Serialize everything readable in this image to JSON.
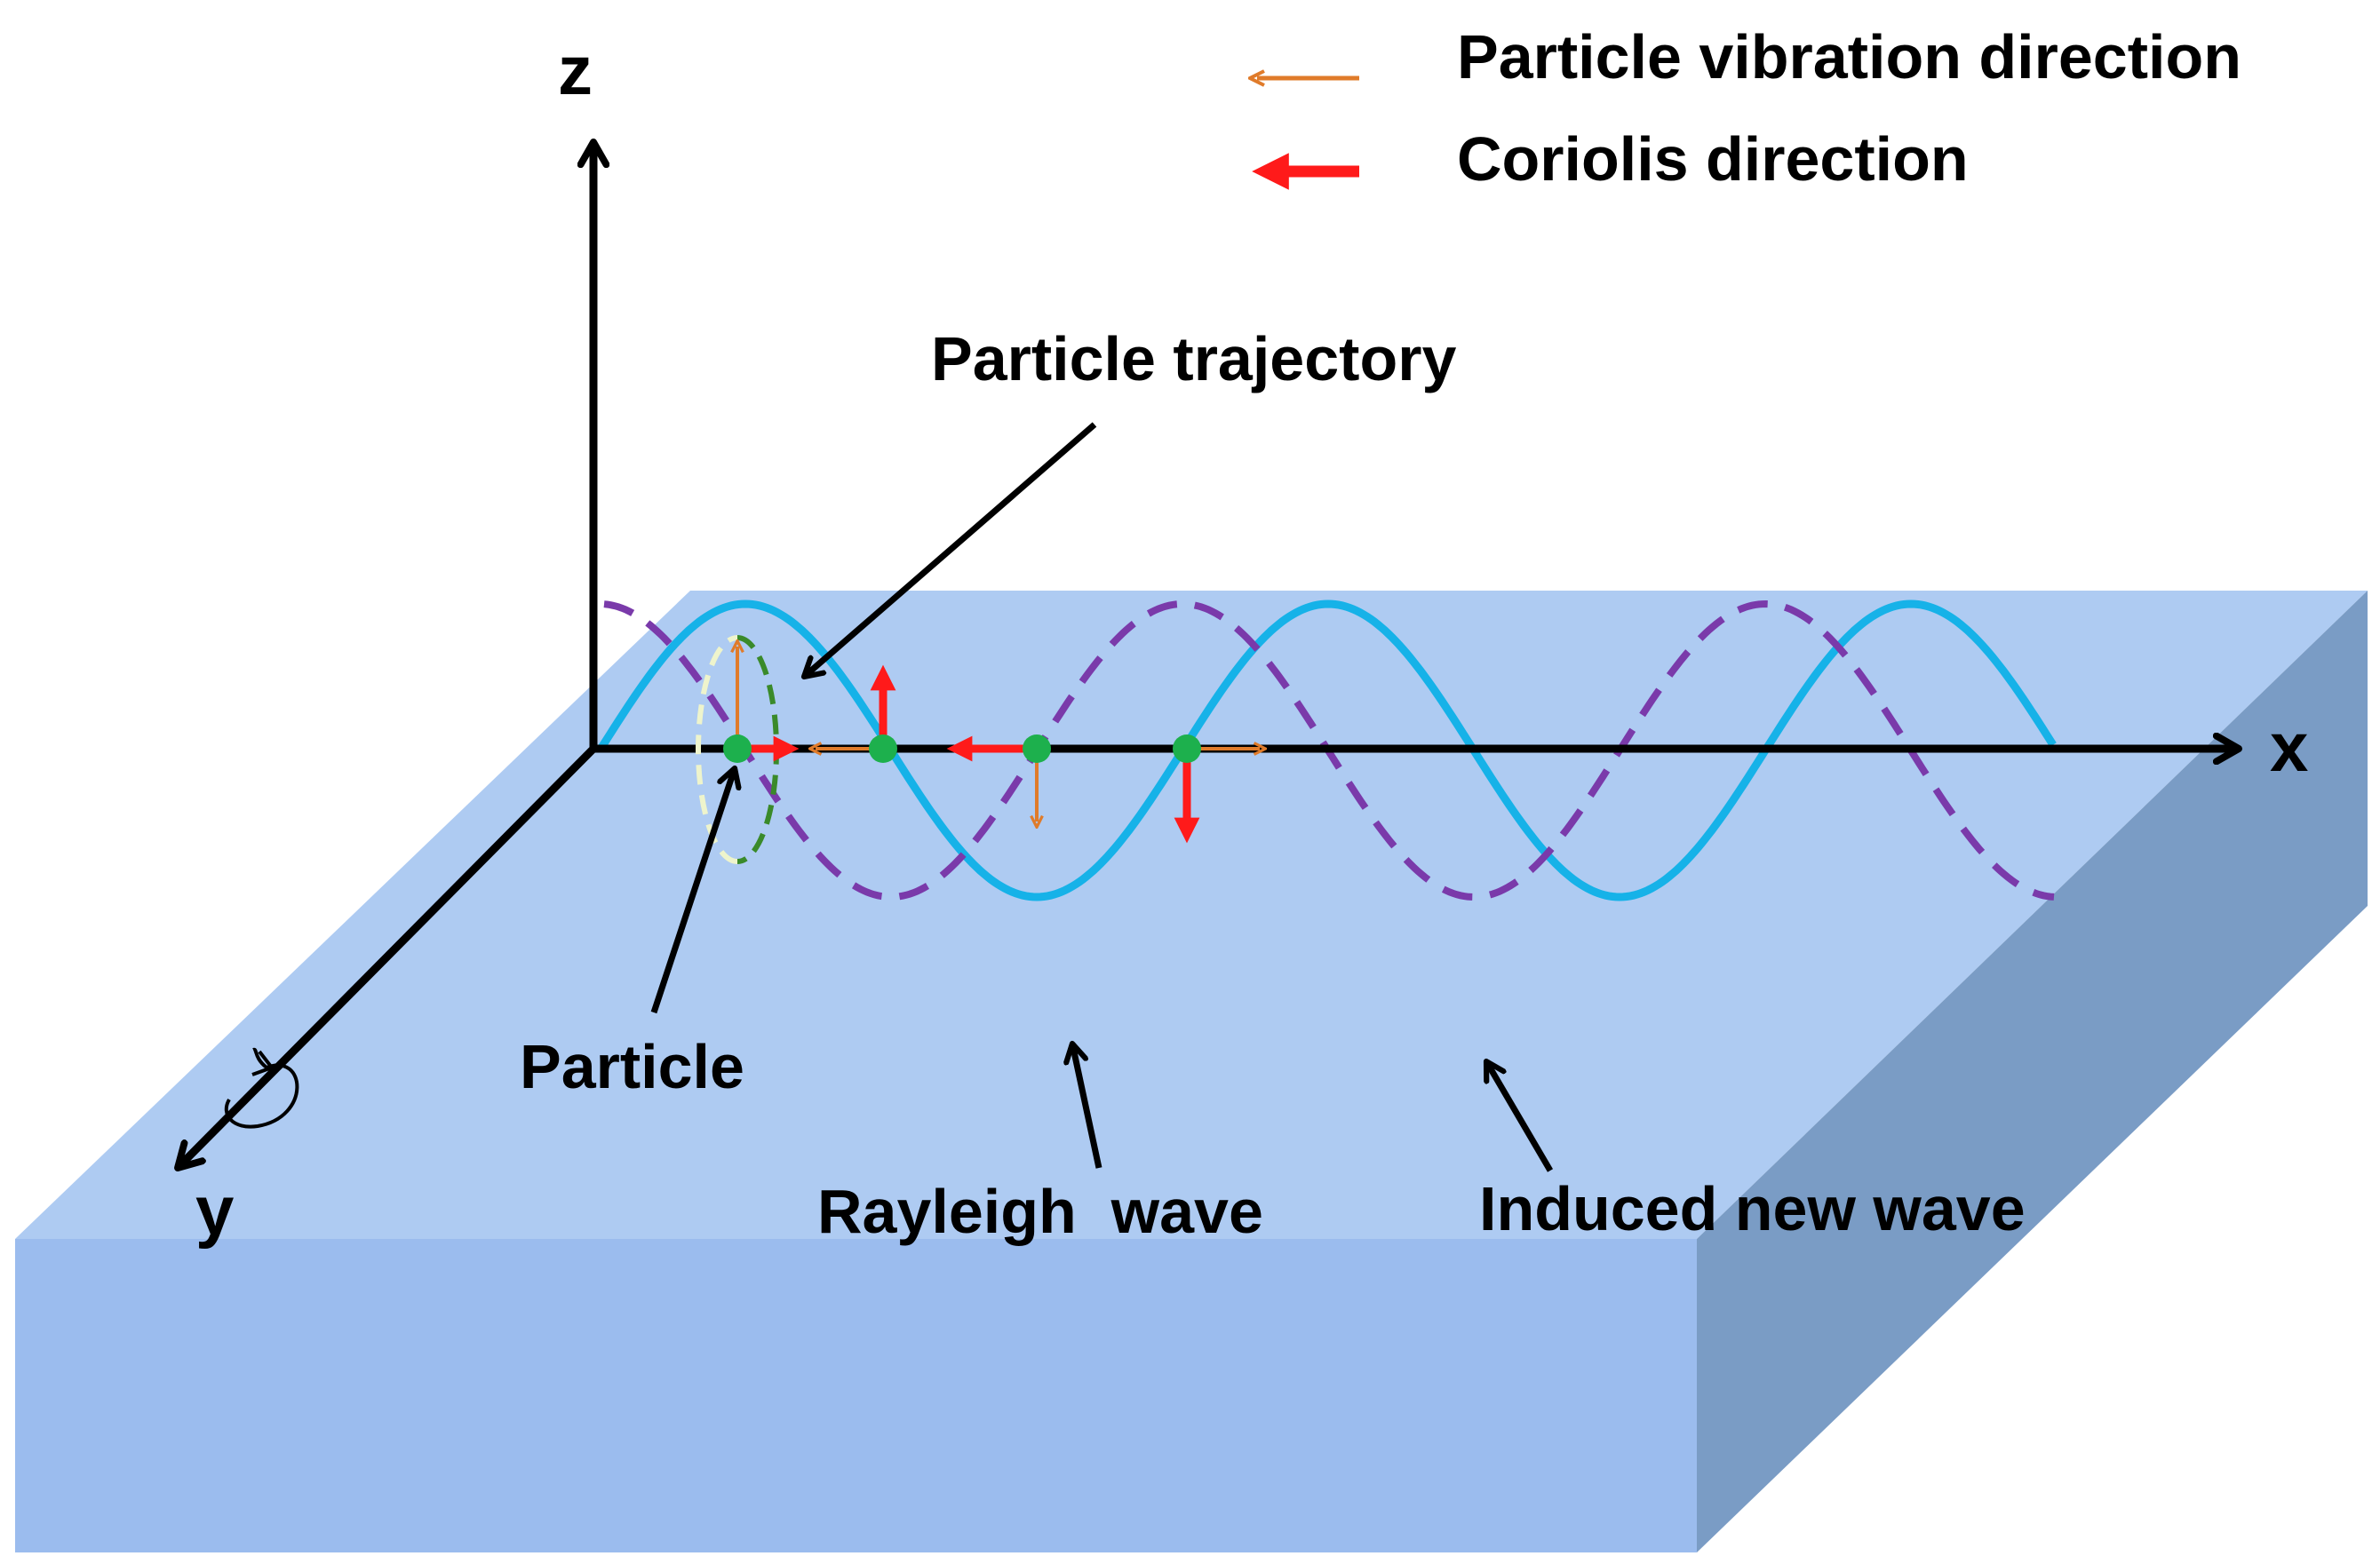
{
  "legend": {
    "vibration_label": "Particle vibration direction",
    "coriolis_label": "Coriolis direction",
    "vibration_color": "#e07b2a",
    "coriolis_color": "#ff1a1a"
  },
  "axes": {
    "x_label": "x",
    "y_label": "y",
    "z_label": "z",
    "rotation_icon": "rotation-arrow-icon"
  },
  "labels": {
    "particle_trajectory": "Particle trajectory",
    "particle": "Particle",
    "rayleigh_wave": "Rayleigh  wave",
    "induced_wave": "Induced new wave"
  },
  "colors": {
    "slab_top": "#aecbf2",
    "slab_front": "#9bbcee",
    "slab_side": "#7a9cc5",
    "rayleigh_wave": "#16b2e8",
    "induced_wave": "#7a3aaa",
    "particle": "#1db04d",
    "trajectory_dark": "#3a8a2a",
    "trajectory_light": "#eef4cc"
  }
}
